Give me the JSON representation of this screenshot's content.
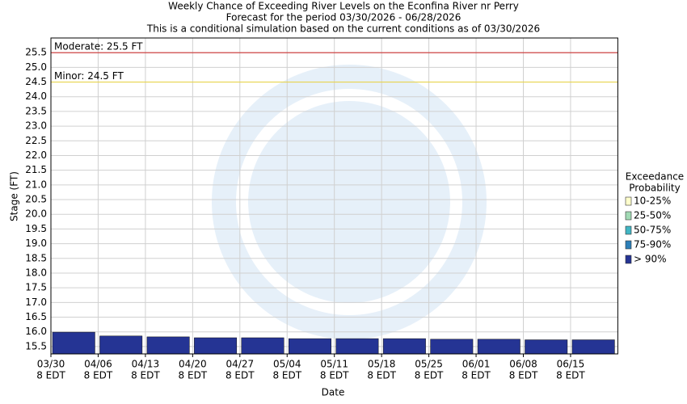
{
  "chart_data": {
    "type": "bar",
    "title": [
      "Weekly Chance of Exceeding River Levels on the Econfina River nr Perry",
      "Forecast for the period 03/30/2026 - 06/28/2026",
      "This is a conditional simulation based on the current conditions as of 03/30/2026"
    ],
    "y_label": "Stage (FT)",
    "x_label": "Date",
    "categories": [
      "03/30",
      "04/06",
      "04/13",
      "04/20",
      "04/27",
      "05/04",
      "05/11",
      "05/18",
      "05/25",
      "06/01",
      "06/08",
      "06/15"
    ],
    "category_sublabel": "8 EDT",
    "series": [
      {
        "name": "> 90%",
        "color": "#253494",
        "values": [
          15.99,
          15.86,
          15.83,
          15.8,
          15.8,
          15.77,
          15.77,
          15.77,
          15.75,
          15.75,
          15.73,
          15.73
        ]
      }
    ],
    "ylim": [
      15.25,
      26.0
    ],
    "yticks": [
      15.5,
      {
        "value": 16,
        "label": "16.0"
      },
      16.5,
      {
        "value": 17,
        "label": "17.0"
      },
      17.5,
      {
        "value": 18,
        "label": "18.0"
      },
      18.5,
      {
        "value": 19,
        "label": "19.0"
      },
      19.5,
      {
        "value": 20,
        "label": "20.0"
      },
      20.5,
      {
        "value": 21,
        "label": "21.0"
      },
      21.5,
      {
        "value": 22,
        "label": "22.0"
      },
      22.5,
      {
        "value": 23,
        "label": "23.0"
      },
      23.5,
      {
        "value": 24,
        "label": "24.0"
      },
      24.5,
      {
        "value": 25,
        "label": "25.0"
      },
      25.5
    ],
    "grid": true,
    "thresholds": [
      {
        "label": "Moderate: 25.5 FT",
        "value": 25.5,
        "color": "#cc3333"
      },
      {
        "label": "Minor: 24.5 FT",
        "value": 24.5,
        "color": "#e8d44d"
      }
    ],
    "legend_title": [
      "Exceedance",
      "Probability"
    ],
    "legend_items": [
      {
        "name": "10-25%",
        "color": "#ffffcc"
      },
      {
        "name": "25-50%",
        "color": "#a1dab4"
      },
      {
        "name": "50-75%",
        "color": "#41b6c4"
      },
      {
        "name": "75-90%",
        "color": "#2c7fb8"
      },
      {
        "name": "> 90%",
        "color": "#253494"
      }
    ]
  }
}
